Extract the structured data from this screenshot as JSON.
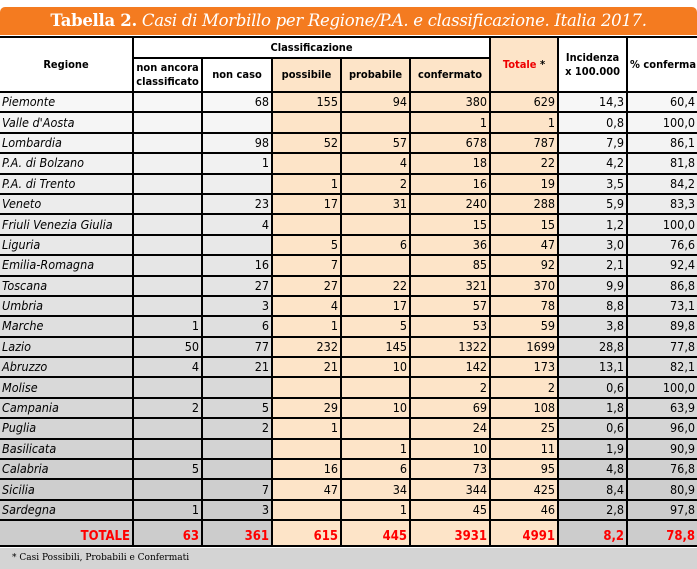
{
  "title": {
    "bold": "Tabella 2.",
    "italic": "Casi di Morbillo per Regione/P.A. e classificazione. Italia 2017."
  },
  "headers": {
    "regione": "Regione",
    "classificazione": "Classificazione",
    "sub": [
      "non ancora classificato",
      "non caso",
      "possibile",
      "probabile",
      "confermato"
    ],
    "totale": "Totale",
    "totale_mark": " *",
    "incidenza": "Incidenza x 100.000",
    "conferma": "% conferma"
  },
  "rows": [
    [
      "Piemonte",
      "",
      "68",
      "155",
      "94",
      "380",
      "629",
      "14,3",
      "60,4"
    ],
    [
      "Valle d'Aosta",
      "",
      "",
      "",
      "",
      "1",
      "1",
      "0,8",
      "100,0"
    ],
    [
      "Lombardia",
      "",
      "98",
      "52",
      "57",
      "678",
      "787",
      "7,9",
      "86,1"
    ],
    [
      "P.A. di Bolzano",
      "",
      "1",
      "",
      "4",
      "18",
      "22",
      "4,2",
      "81,8"
    ],
    [
      "P.A. di Trento",
      "",
      "",
      "1",
      "2",
      "16",
      "19",
      "3,5",
      "84,2"
    ],
    [
      "Veneto",
      "",
      "23",
      "17",
      "31",
      "240",
      "288",
      "5,9",
      "83,3"
    ],
    [
      "Friuli Venezia Giulia",
      "",
      "4",
      "",
      "",
      "15",
      "15",
      "1,2",
      "100,0"
    ],
    [
      "Liguria",
      "",
      "",
      "5",
      "6",
      "36",
      "47",
      "3,0",
      "76,6"
    ],
    [
      "Emilia-Romagna",
      "",
      "16",
      "7",
      "",
      "85",
      "92",
      "2,1",
      "92,4"
    ],
    [
      "Toscana",
      "",
      "27",
      "27",
      "22",
      "321",
      "370",
      "9,9",
      "86,8"
    ],
    [
      "Umbria",
      "",
      "3",
      "4",
      "17",
      "57",
      "78",
      "8,8",
      "73,1"
    ],
    [
      "Marche",
      "1",
      "6",
      "1",
      "5",
      "53",
      "59",
      "3,8",
      "89,8"
    ],
    [
      "Lazio",
      "50",
      "77",
      "232",
      "145",
      "1322",
      "1699",
      "28,8",
      "77,8"
    ],
    [
      "Abruzzo",
      "4",
      "21",
      "21",
      "10",
      "142",
      "173",
      "13,1",
      "82,1"
    ],
    [
      "Molise",
      "",
      "",
      "",
      "",
      "2",
      "2",
      "0,6",
      "100,0"
    ],
    [
      "Campania",
      "2",
      "5",
      "29",
      "10",
      "69",
      "108",
      "1,8",
      "63,9"
    ],
    [
      "Puglia",
      "",
      "2",
      "1",
      "",
      "24",
      "25",
      "0,6",
      "96,0"
    ],
    [
      "Basilicata",
      "",
      "",
      "",
      "1",
      "10",
      "11",
      "1,9",
      "90,9"
    ],
    [
      "Calabria",
      "5",
      "",
      "16",
      "6",
      "73",
      "95",
      "4,8",
      "76,8"
    ],
    [
      "Sicilia",
      "",
      "7",
      "47",
      "34",
      "344",
      "425",
      "8,4",
      "80,9"
    ],
    [
      "Sardegna",
      "1",
      "3",
      "",
      "1",
      "45",
      "46",
      "2,8",
      "97,8"
    ]
  ],
  "total": [
    "TOTALE",
    "63",
    "361",
    "615",
    "445",
    "3931",
    "4991",
    "8,2",
    "78,8"
  ],
  "footnote": "* Casi Possibili, Probabili e Confermati",
  "colors": {
    "accent": "#f47b20",
    "highlight": "#fde4c8",
    "total_text": "#ff0000"
  }
}
